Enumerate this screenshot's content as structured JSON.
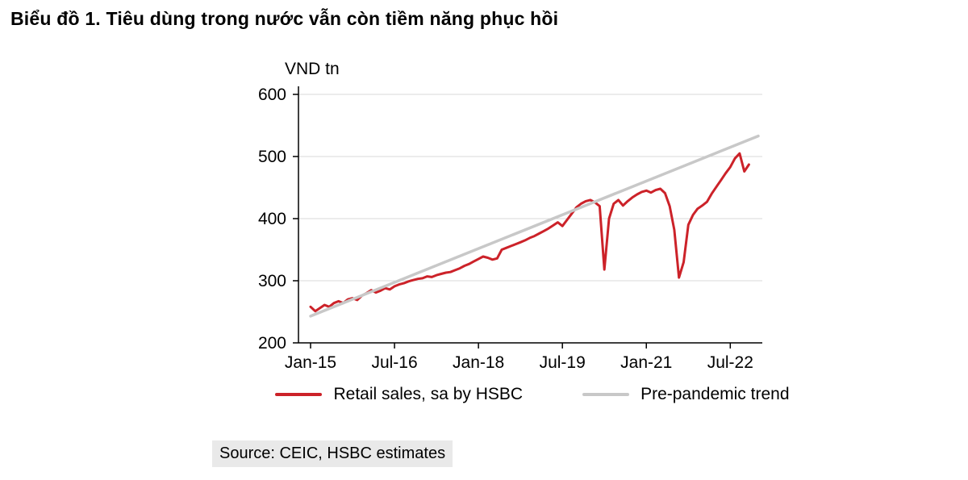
{
  "source": "Source: CEIC, HSBC estimates",
  "chart_data": {
    "type": "line",
    "title": "Biểu đồ 1. Tiêu dùng trong nước vẫn còn tiềm năng phục hồi",
    "ylabel": "VND tn",
    "xlabel": "",
    "ylim": [
      200,
      600
    ],
    "y_ticks": [
      200,
      300,
      400,
      500,
      600
    ],
    "xlim": [
      0,
      96
    ],
    "x_unit": "months since Jan-2015",
    "x_ticks": [
      {
        "index": 0,
        "label": "Jan-15"
      },
      {
        "index": 18,
        "label": "Jul-16"
      },
      {
        "index": 36,
        "label": "Jan-18"
      },
      {
        "index": 54,
        "label": "Jul-19"
      },
      {
        "index": 72,
        "label": "Jan-21"
      },
      {
        "index": 90,
        "label": "Jul-22"
      }
    ],
    "grid": "horizontal",
    "grid_color": "#d9d9d9",
    "axis_color": "#000000",
    "legend_position": "bottom",
    "series": [
      {
        "name": "Retail sales, sa by HSBC",
        "color": "#cc2229",
        "values": [
          258,
          251,
          256,
          261,
          258,
          264,
          267,
          264,
          270,
          272,
          269,
          276,
          280,
          285,
          281,
          284,
          288,
          286,
          291,
          294,
          296,
          299,
          301,
          303,
          304,
          307,
          306,
          309,
          311,
          313,
          314,
          317,
          320,
          324,
          327,
          331,
          335,
          339,
          337,
          334,
          336,
          350,
          353,
          356,
          359,
          362,
          365,
          369,
          372,
          376,
          380,
          384,
          389,
          394,
          388,
          398,
          408,
          418,
          424,
          428,
          430,
          426,
          420,
          318,
          400,
          424,
          430,
          421,
          428,
          434,
          439,
          443,
          445,
          442,
          446,
          448,
          441,
          420,
          382,
          305,
          330,
          390,
          406,
          416,
          421,
          427,
          440,
          451,
          462,
          473,
          483,
          497,
          505,
          476,
          487
        ]
      },
      {
        "name": "Pre-pandemic trend",
        "color": "#c8c8c8",
        "x": [
          0,
          96
        ],
        "values": [
          243,
          533
        ]
      }
    ]
  }
}
